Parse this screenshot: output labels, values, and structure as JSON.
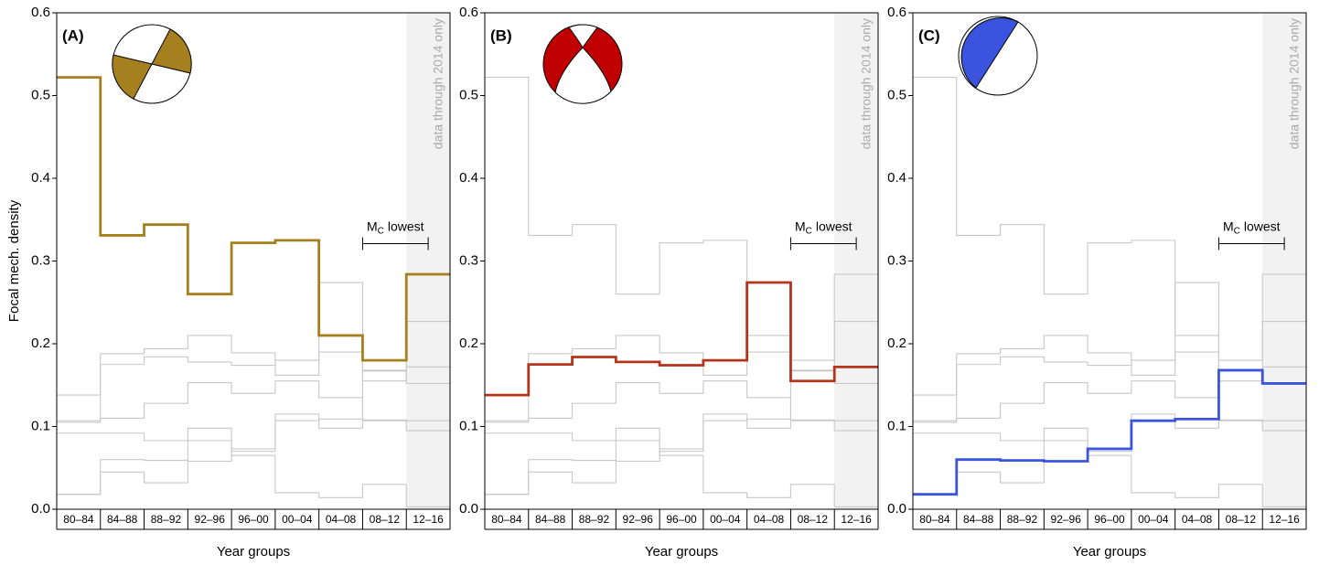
{
  "chart_data": [
    {
      "type": "step",
      "label": "(A)",
      "ylabel": "Focal mech. density",
      "xlabel": "Year groups",
      "shade_label": "data through 2014 only",
      "mc_label": "M",
      "mc_sub": "C",
      "mc_text": "lowest",
      "categories": [
        "80–84",
        "84–88",
        "88–92",
        "92–96",
        "96–00",
        "00–04",
        "04–08",
        "08–12",
        "12–16"
      ],
      "ylim": [
        0,
        0.6
      ],
      "yticks": [
        {
          "value": 0,
          "label": "0.0"
        },
        0.1,
        0.2,
        0.3,
        0.4,
        0.5,
        0.6
      ],
      "series": [
        {
          "color": "#c8c8c8",
          "values": [
            0.138,
            0.175,
            0.184,
            0.178,
            0.174,
            0.18,
            0.274,
            0.155,
            0.172
          ]
        },
        {
          "color": "#c8c8c8",
          "values": [
            0.018,
            0.06,
            0.059,
            0.058,
            0.073,
            0.107,
            0.109,
            0.168,
            0.152
          ]
        },
        {
          "color": "#c8c8c8",
          "values": [
            0.107,
            0.188,
            0.194,
            0.21,
            0.189,
            0.162,
            0.19,
            0.167,
            0.227
          ]
        },
        {
          "color": "#c8c8c8",
          "values": [
            0.105,
            0.11,
            0.128,
            0.153,
            0.14,
            0.155,
            0.135,
            0.108,
            0.107
          ]
        },
        {
          "color": "#c8c8c8",
          "values": [
            0.092,
            0.092,
            0.083,
            0.098,
            0.07,
            0.115,
            0.098,
            0.107,
            0.095
          ]
        },
        {
          "color": "#c8c8c8",
          "values": [
            0.018,
            0.045,
            0.032,
            0.083,
            0.065,
            0.02,
            0.014,
            0.03,
            0.003
          ]
        },
        {
          "color": "#a67f1f",
          "values": [
            0.522,
            0.331,
            0.344,
            0.26,
            0.322,
            0.325,
            0.21,
            0.18,
            0.284
          ]
        }
      ]
    },
    {
      "type": "step",
      "label": "(B)",
      "xlabel": "Year groups",
      "shade_label": "data through 2014 only",
      "mc_label": "M",
      "mc_sub": "C",
      "mc_text": "lowest",
      "categories": [
        "80–84",
        "84–88",
        "88–92",
        "92–96",
        "96–00",
        "00–04",
        "04–08",
        "08–12",
        "12–16"
      ],
      "ylim": [
        0,
        0.6
      ],
      "yticks": [
        {
          "value": 0,
          "label": "0.0"
        },
        0.1,
        0.2,
        0.3,
        0.4,
        0.5,
        0.6
      ],
      "series": [
        {
          "color": "#c8c8c8",
          "values": [
            0.522,
            0.331,
            0.344,
            0.26,
            0.322,
            0.325,
            0.21,
            0.18,
            0.284
          ]
        },
        {
          "color": "#c8c8c8",
          "values": [
            0.018,
            0.06,
            0.059,
            0.058,
            0.073,
            0.107,
            0.109,
            0.168,
            0.152
          ]
        },
        {
          "color": "#c8c8c8",
          "values": [
            0.107,
            0.188,
            0.194,
            0.21,
            0.189,
            0.162,
            0.19,
            0.167,
            0.227
          ]
        },
        {
          "color": "#c8c8c8",
          "values": [
            0.105,
            0.11,
            0.128,
            0.153,
            0.14,
            0.155,
            0.135,
            0.108,
            0.107
          ]
        },
        {
          "color": "#c8c8c8",
          "values": [
            0.092,
            0.092,
            0.083,
            0.098,
            0.07,
            0.115,
            0.098,
            0.107,
            0.095
          ]
        },
        {
          "color": "#c8c8c8",
          "values": [
            0.018,
            0.045,
            0.032,
            0.083,
            0.065,
            0.02,
            0.014,
            0.03,
            0.003
          ]
        },
        {
          "color": "#b5341c",
          "values": [
            0.138,
            0.175,
            0.184,
            0.178,
            0.174,
            0.18,
            0.274,
            0.155,
            0.172
          ]
        }
      ]
    },
    {
      "type": "step",
      "label": "(C)",
      "xlabel": "Year groups",
      "shade_label": "data through 2014 only",
      "mc_label": "M",
      "mc_sub": "C",
      "mc_text": "lowest",
      "categories": [
        "80–84",
        "84–88",
        "88–92",
        "92–96",
        "96–00",
        "00–04",
        "04–08",
        "08–12",
        "12–16"
      ],
      "ylim": [
        0,
        0.6
      ],
      "yticks": [
        {
          "value": 0,
          "label": "0.0"
        },
        0.1,
        0.2,
        0.3,
        0.4,
        0.5,
        0.6
      ],
      "series": [
        {
          "color": "#c8c8c8",
          "values": [
            0.522,
            0.331,
            0.344,
            0.26,
            0.322,
            0.325,
            0.21,
            0.18,
            0.284
          ]
        },
        {
          "color": "#c8c8c8",
          "values": [
            0.138,
            0.175,
            0.184,
            0.178,
            0.174,
            0.18,
            0.274,
            0.155,
            0.172
          ]
        },
        {
          "color": "#c8c8c8",
          "values": [
            0.107,
            0.188,
            0.194,
            0.21,
            0.189,
            0.162,
            0.19,
            0.167,
            0.227
          ]
        },
        {
          "color": "#c8c8c8",
          "values": [
            0.105,
            0.11,
            0.128,
            0.153,
            0.14,
            0.155,
            0.135,
            0.108,
            0.107
          ]
        },
        {
          "color": "#c8c8c8",
          "values": [
            0.092,
            0.092,
            0.083,
            0.098,
            0.07,
            0.115,
            0.098,
            0.107,
            0.095
          ]
        },
        {
          "color": "#c8c8c8",
          "values": [
            0.018,
            0.045,
            0.032,
            0.083,
            0.065,
            0.02,
            0.014,
            0.03,
            0.003
          ]
        },
        {
          "color": "#3a54e0",
          "values": [
            0.018,
            0.06,
            0.059,
            0.058,
            0.073,
            0.107,
            0.109,
            0.168,
            0.152
          ]
        }
      ]
    }
  ]
}
